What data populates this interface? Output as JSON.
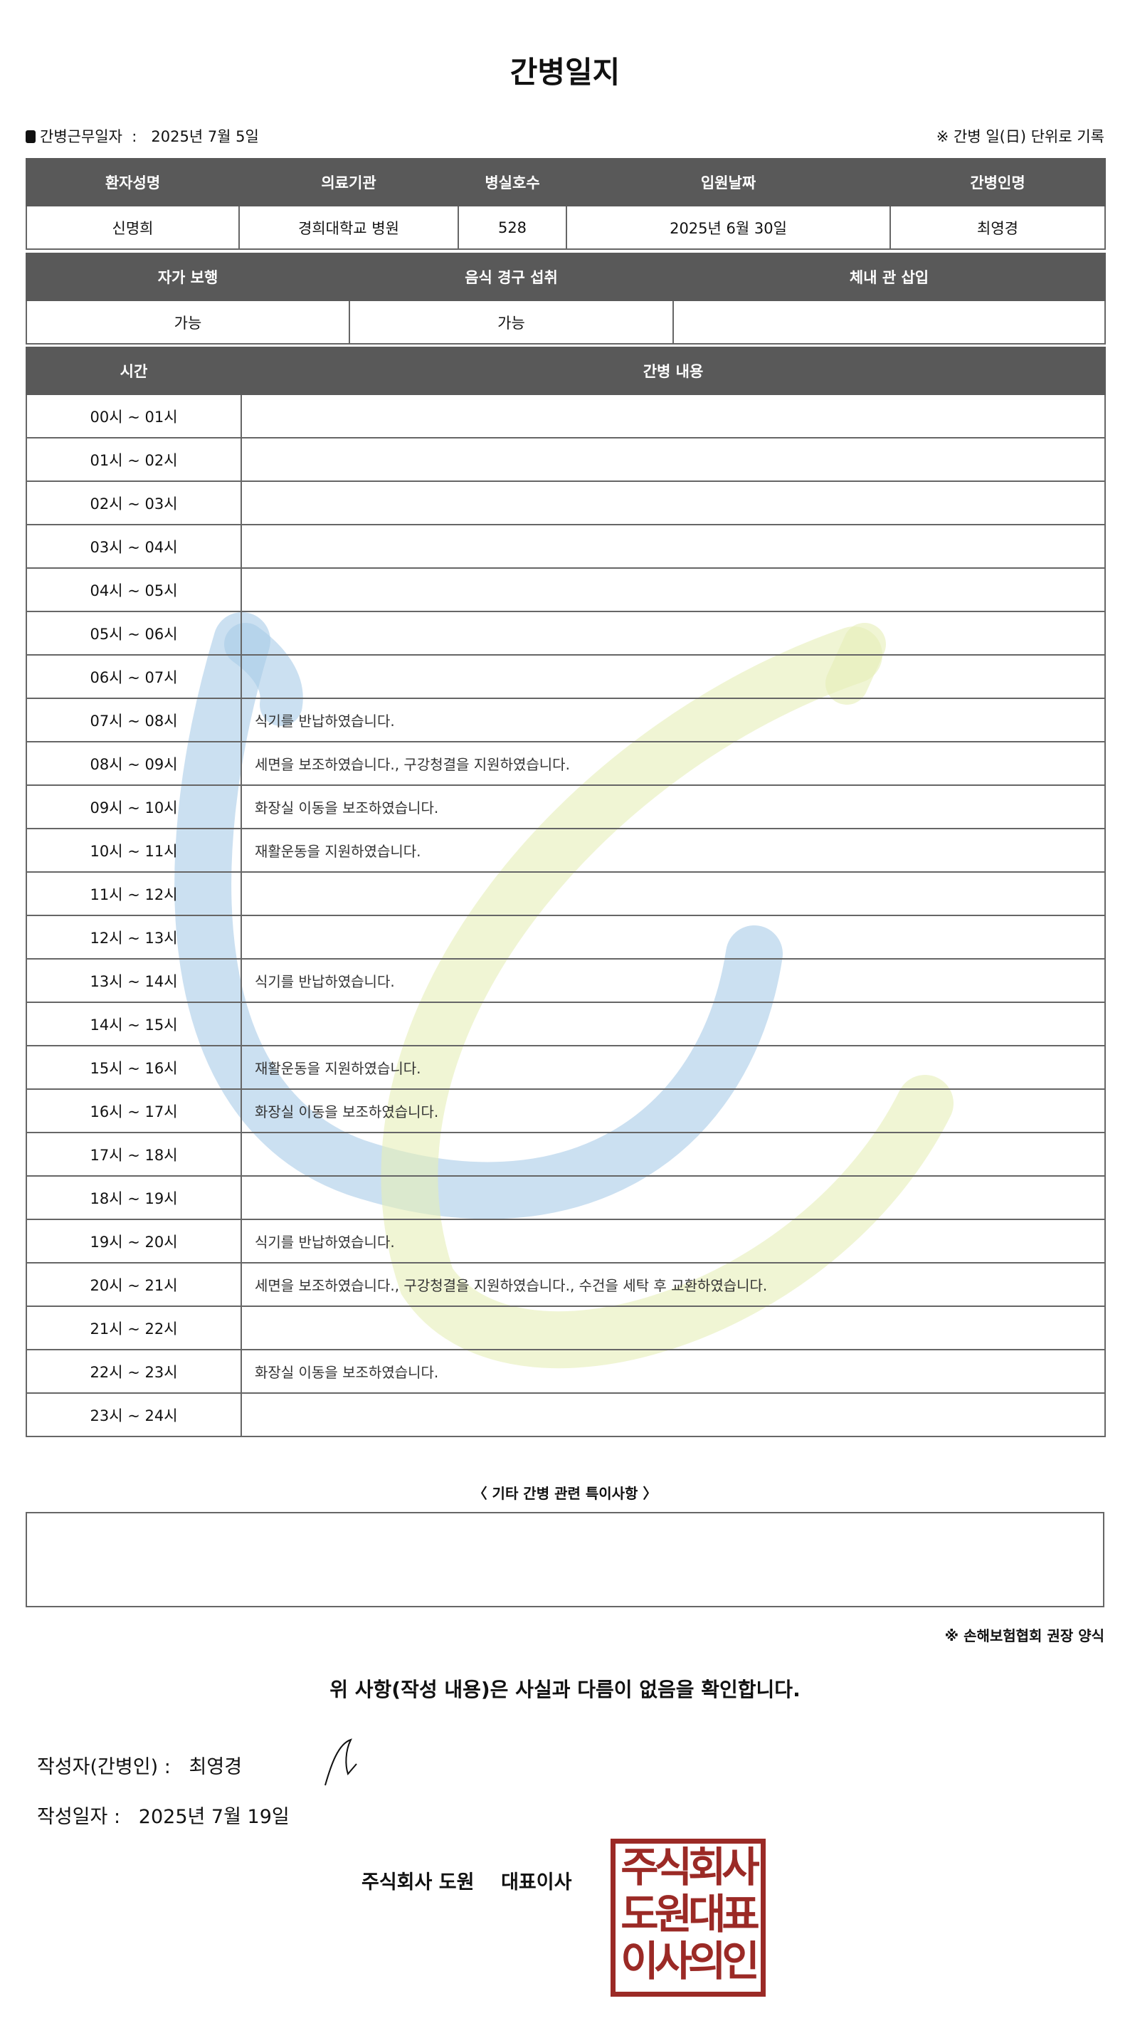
{
  "title": "간병일지",
  "work_date_label": "간병근무일자",
  "work_date": "2025년 7월 5일",
  "unit_note": "※ 간병 일(日) 단위로 기록",
  "patient_table": {
    "headers": [
      "환자성명",
      "의료기관",
      "병실호수",
      "입원날짜",
      "간병인명"
    ],
    "values": [
      "신명희",
      "경희대학교 병원",
      "528",
      "2025년 6월 30일",
      "최영경"
    ]
  },
  "status_table": {
    "headers": [
      "자가 보행",
      "음식 경구 섭취",
      "체내 관 삽입"
    ],
    "values": [
      "가능",
      "가능",
      ""
    ]
  },
  "log_table": {
    "headers": [
      "시간",
      "간병 내용"
    ],
    "rows": [
      {
        "time": "00시 ~ 01시",
        "content": ""
      },
      {
        "time": "01시 ~ 02시",
        "content": ""
      },
      {
        "time": "02시 ~ 03시",
        "content": ""
      },
      {
        "time": "03시 ~ 04시",
        "content": ""
      },
      {
        "time": "04시 ~ 05시",
        "content": ""
      },
      {
        "time": "05시 ~ 06시",
        "content": ""
      },
      {
        "time": "06시 ~ 07시",
        "content": ""
      },
      {
        "time": "07시 ~ 08시",
        "content": "식기를 반납하였습니다."
      },
      {
        "time": "08시 ~ 09시",
        "content": "세면을 보조하였습니다., 구강청결을 지원하였습니다."
      },
      {
        "time": "09시 ~ 10시",
        "content": "화장실 이동을 보조하였습니다."
      },
      {
        "time": "10시 ~ 11시",
        "content": "재활운동을 지원하였습니다."
      },
      {
        "time": "11시 ~ 12시",
        "content": ""
      },
      {
        "time": "12시 ~ 13시",
        "content": ""
      },
      {
        "time": "13시 ~ 14시",
        "content": "식기를 반납하였습니다."
      },
      {
        "time": "14시 ~ 15시",
        "content": ""
      },
      {
        "time": "15시 ~ 16시",
        "content": "재활운동을 지원하였습니다."
      },
      {
        "time": "16시 ~ 17시",
        "content": "화장실 이동을 보조하였습니다."
      },
      {
        "time": "17시 ~ 18시",
        "content": ""
      },
      {
        "time": "18시 ~ 19시",
        "content": ""
      },
      {
        "time": "19시 ~ 20시",
        "content": "식기를 반납하였습니다."
      },
      {
        "time": "20시 ~ 21시",
        "content": "세면을 보조하였습니다., 구강청결을 지원하였습니다., 수건을 세탁 후 교환하였습니다."
      },
      {
        "time": "21시 ~ 22시",
        "content": ""
      },
      {
        "time": "22시 ~ 23시",
        "content": "화장실 이동을 보조하였습니다."
      },
      {
        "time": "23시 ~ 24시",
        "content": ""
      }
    ]
  },
  "notes_label": "〈 기타 간병 관련 특이사항 〉",
  "notes": "",
  "association_note": "※ 손해보험협회 권장 양식",
  "confirmation": "위 사항(작성 내용)은 사실과 다름이 없음을 확인합니다.",
  "writer_label": "작성자(간병인) :",
  "writer_name": "최영경",
  "write_date_label": "작성일자 :",
  "write_date": "2025년 7월 19일",
  "company": "주식회사 도원",
  "ceo_label": "대표이사",
  "stamp_text": [
    "주식회사",
    "도원대표",
    "이사의인"
  ],
  "colors": {
    "header_bg": "#595959",
    "stamp": "#9b2a26",
    "watermark_blue": "#a9cce8",
    "watermark_green": "#e6efb8"
  }
}
